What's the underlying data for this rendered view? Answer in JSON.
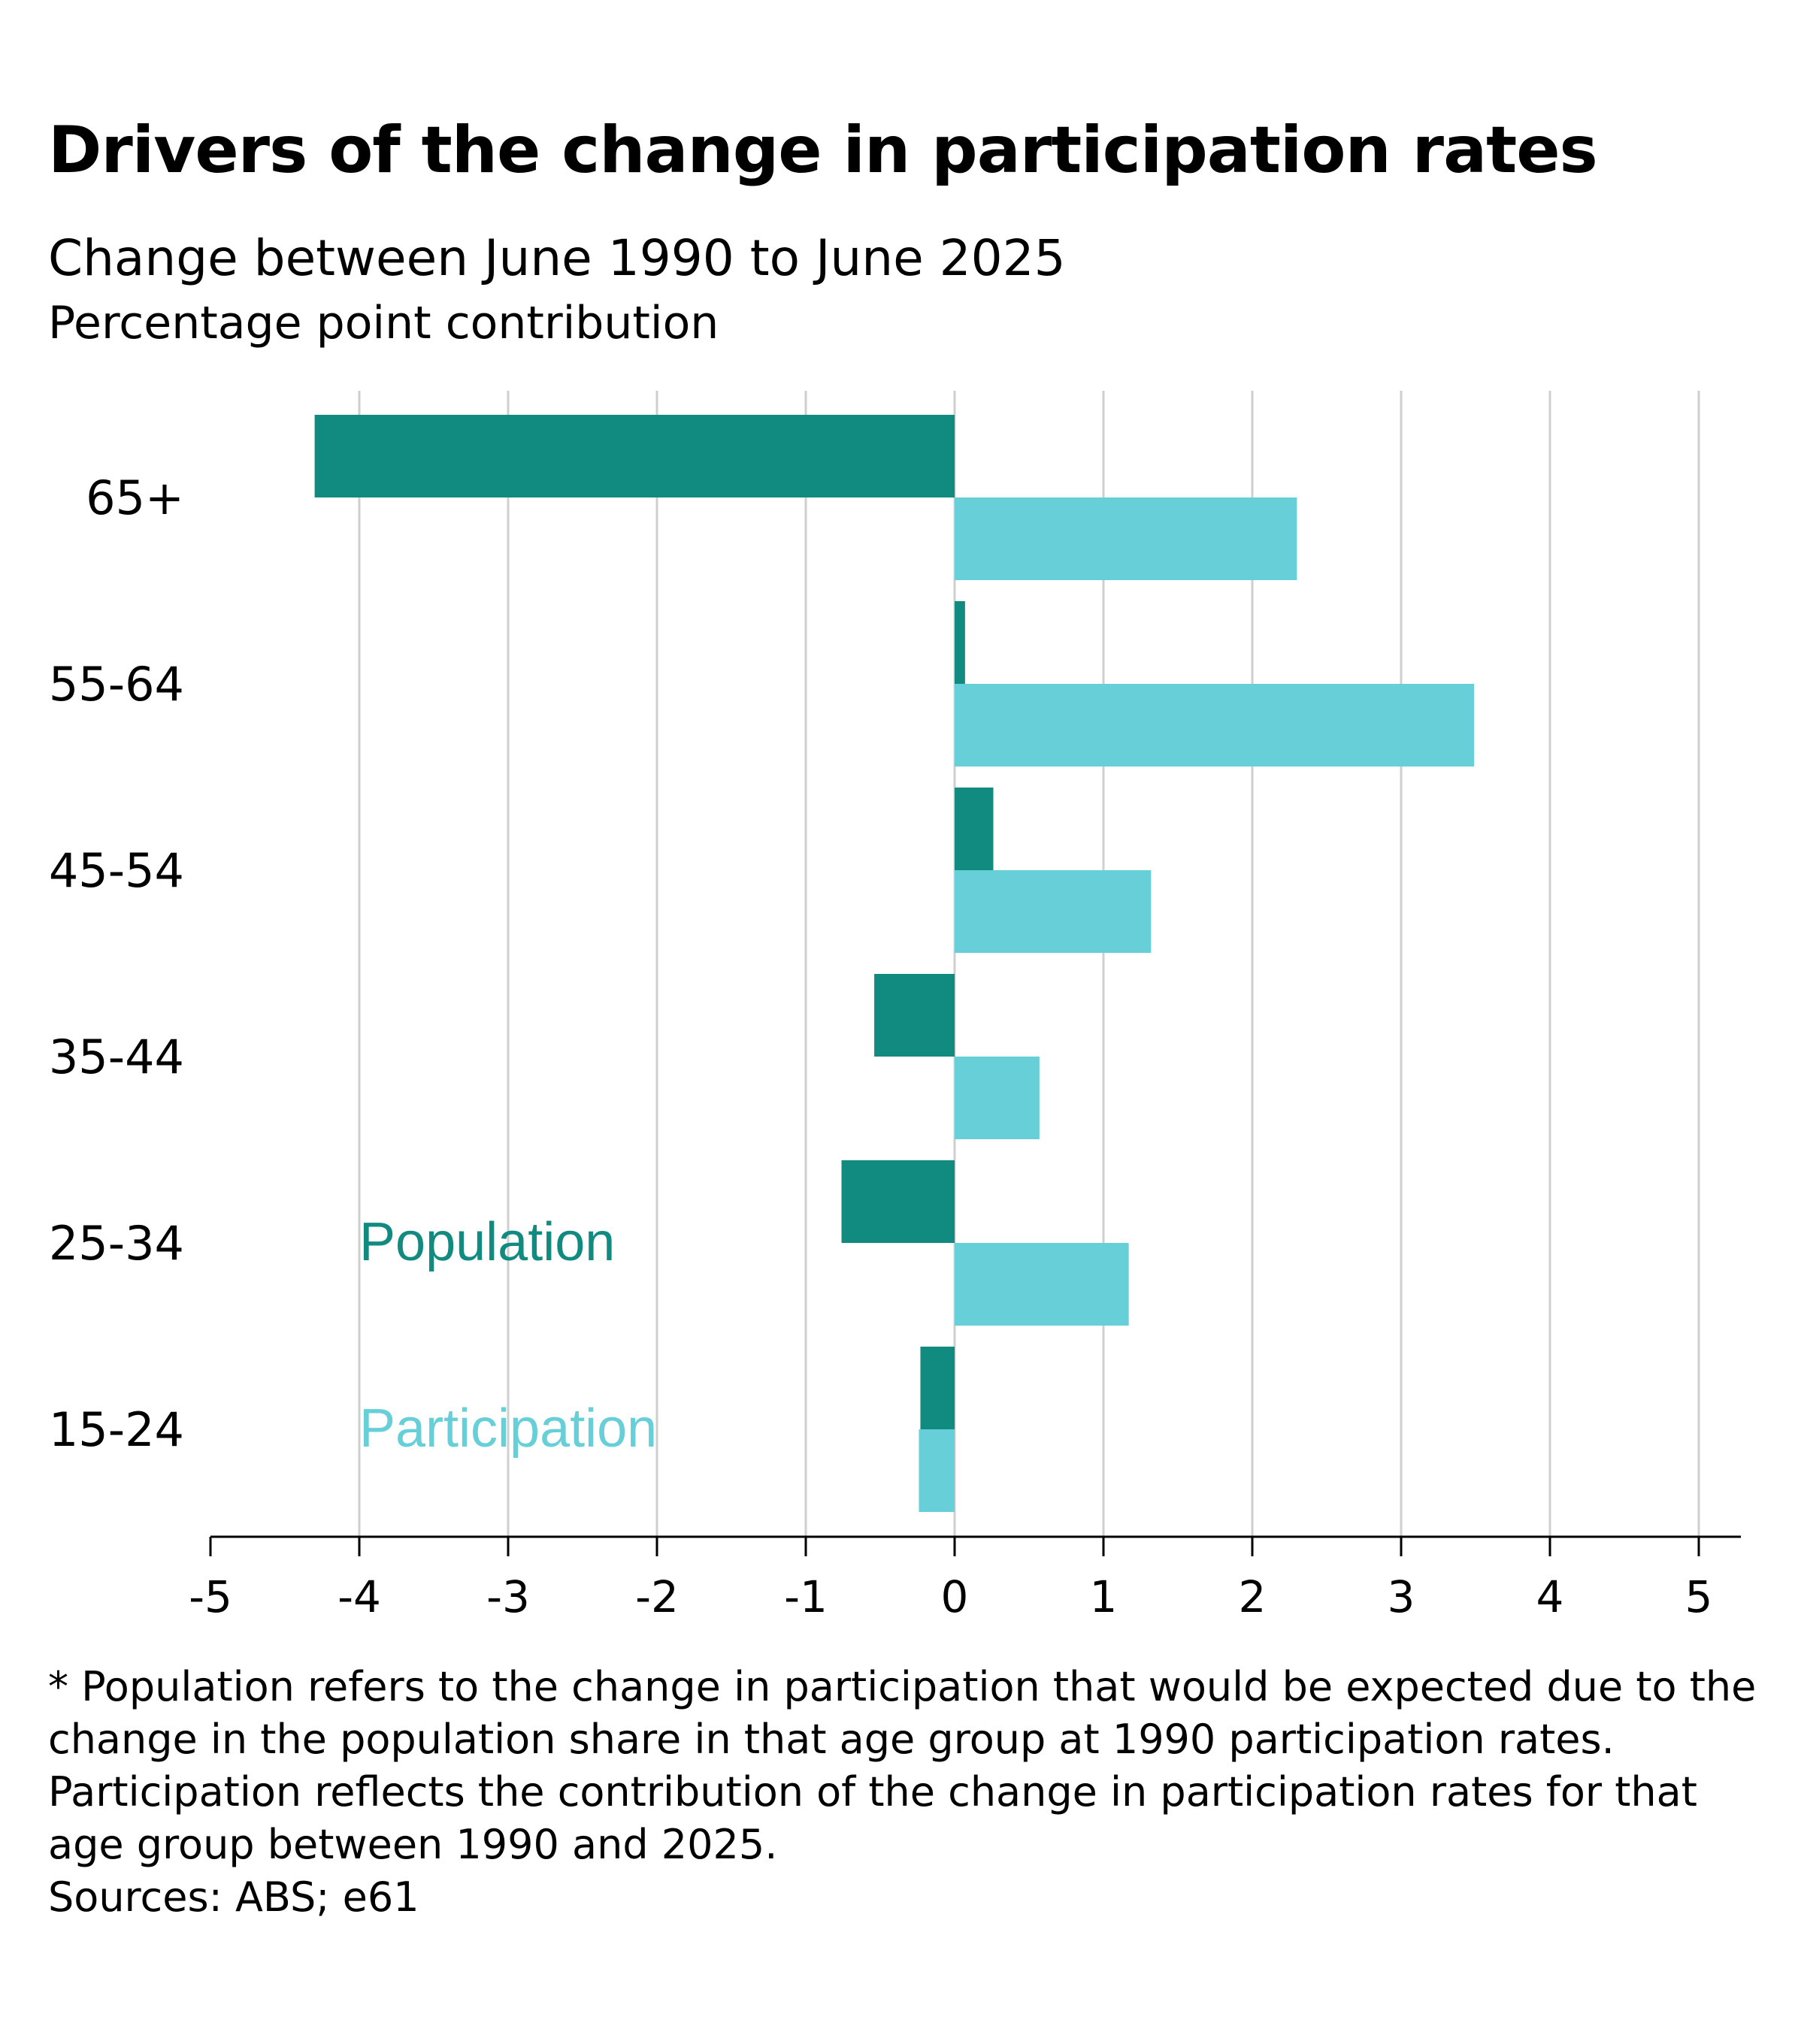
{
  "chart_data": {
    "type": "bar",
    "orientation": "horizontal",
    "title": "Drivers of the change in participation rates",
    "subtitle": "Change between June 1990 to June 2025",
    "unit_label": "Percentage point contribution",
    "categories": [
      "65+",
      "55-64",
      "45-54",
      "35-44",
      "25-34",
      "15-24"
    ],
    "series": [
      {
        "name": "Population",
        "color": "#118a80",
        "values": [
          -4.3,
          0.07,
          0.26,
          -0.54,
          -0.76,
          -0.23
        ]
      },
      {
        "name": "Participation",
        "color": "#67cfd7",
        "values": [
          2.3,
          3.49,
          1.32,
          0.57,
          1.17,
          -0.24
        ]
      }
    ],
    "xlim": [
      -5,
      5
    ],
    "xticks": [
      "-5",
      "-4",
      "-3",
      "-2",
      "-1",
      "0",
      "1",
      "2",
      "3",
      "4",
      "5"
    ],
    "grid": "vertical",
    "legend": "inline labels, lower-left"
  },
  "footnote": [
    "* Population refers to the change in participation that would be expected due to the",
    "change in the population share in that age group at 1990 participation rates.",
    "Participation reflects the contribution of the change in participation rates for that",
    "age group between 1990 and 2025.",
    "Sources: ABS; e61"
  ]
}
